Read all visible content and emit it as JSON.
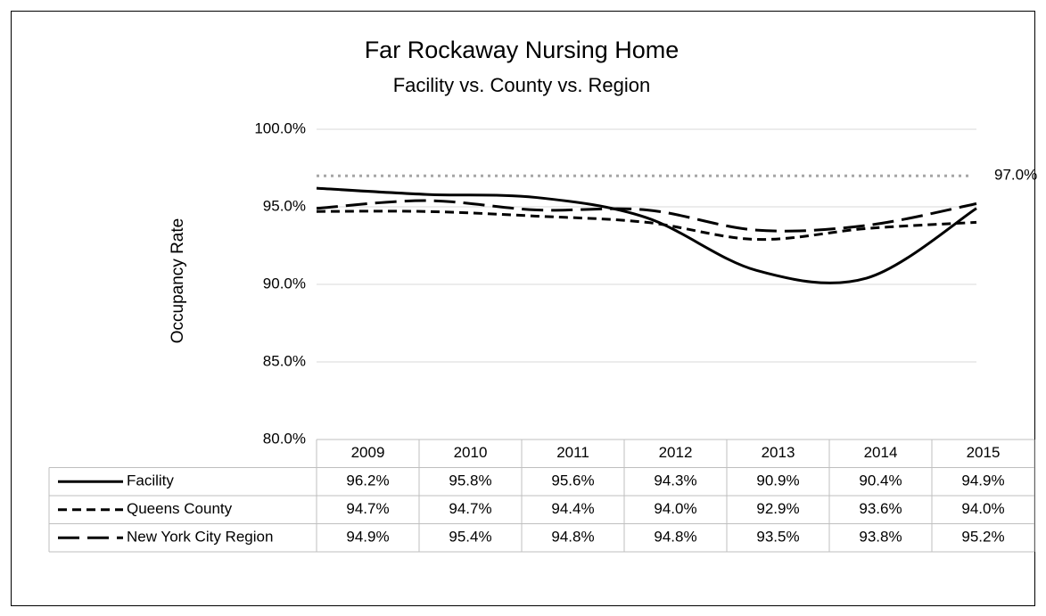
{
  "chart_data": {
    "type": "line",
    "title": "Far Rockaway Nursing Home",
    "subtitle": "Facility vs. County vs. Region",
    "y_label": "Occupancy Rate",
    "categories": [
      "2009",
      "2010",
      "2011",
      "2012",
      "2013",
      "2014",
      "2015"
    ],
    "series": [
      {
        "name": "Facility",
        "color": "#000000",
        "style": "solid",
        "values": [
          96.2,
          95.8,
          95.6,
          94.3,
          90.9,
          90.4,
          94.9
        ],
        "value_labels": [
          "96.2%",
          "95.8%",
          "95.6%",
          "94.3%",
          "90.9%",
          "90.4%",
          "94.9%"
        ]
      },
      {
        "name": "Queens County",
        "color": "#000000",
        "style": "dash",
        "values": [
          94.7,
          94.7,
          94.4,
          94.0,
          92.9,
          93.6,
          94.0
        ],
        "value_labels": [
          "94.7%",
          "94.7%",
          "94.4%",
          "94.0%",
          "92.9%",
          "93.6%",
          "94.0%"
        ]
      },
      {
        "name": "New York City Region",
        "color": "#000000",
        "style": "long-dash",
        "values": [
          94.9,
          95.4,
          94.8,
          94.8,
          93.5,
          93.8,
          95.2
        ],
        "value_labels": [
          "94.9%",
          "95.4%",
          "94.8%",
          "94.8%",
          "93.5%",
          "93.8%",
          "95.2%"
        ]
      }
    ],
    "reference": {
      "value": 97,
      "label": "97.0%",
      "color": "#a6a6a6"
    },
    "ylim": [
      80,
      100
    ],
    "yticks": [
      {
        "value": 80,
        "label": "80.0%"
      },
      {
        "value": 85,
        "label": "85.0%"
      },
      {
        "value": 90,
        "label": "90.0%"
      },
      {
        "value": 95,
        "label": "95.0%"
      },
      {
        "value": 100,
        "label": "100.0%"
      }
    ],
    "grid": true,
    "smooth": true
  }
}
